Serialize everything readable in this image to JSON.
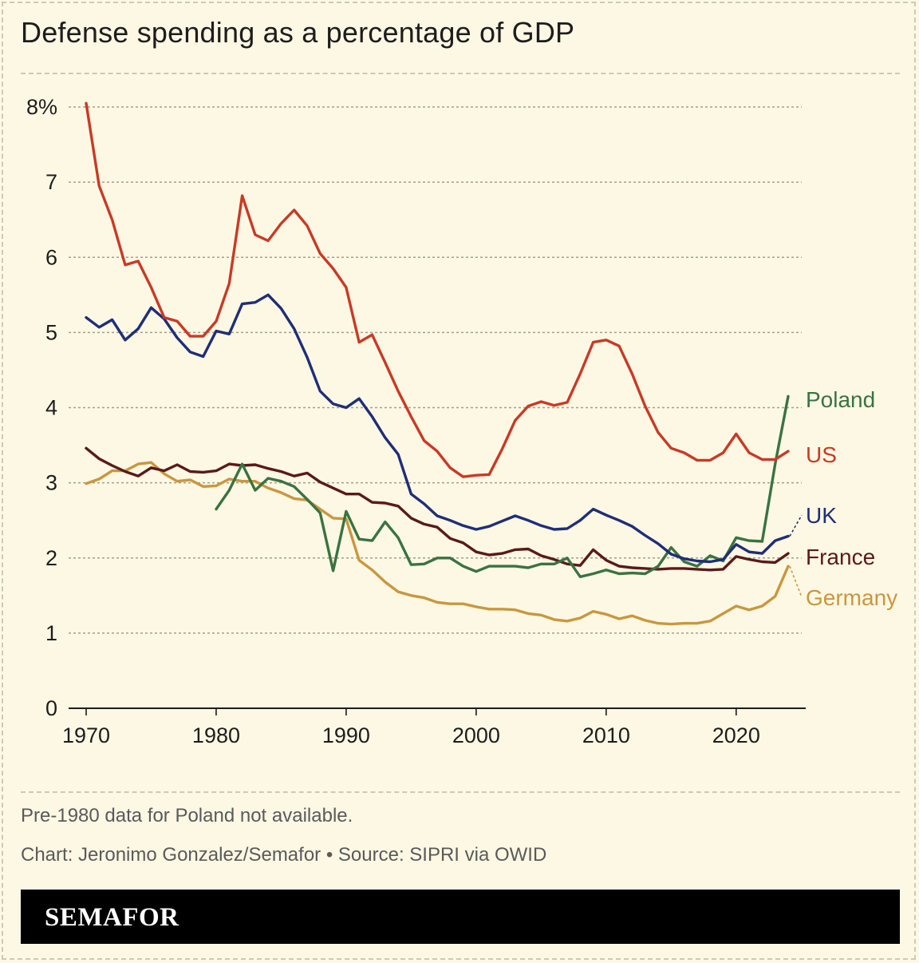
{
  "title": "Defense spending as a percentage of GDP",
  "note": "Pre-1980 data for Poland not available.",
  "credit": "Chart: Jeronimo Gonzalez/Semafor • Source: SIPRI via OWID",
  "brand": "SEMAFOR",
  "chart_data": {
    "type": "line",
    "title": "Defense spending as a percentage of GDP",
    "xlabel": "",
    "ylabel": "",
    "xlim": [
      1970,
      2024
    ],
    "ylim": [
      0,
      8
    ],
    "x_ticks": [
      {
        "value": 1970,
        "label": "1970"
      },
      {
        "value": 1980,
        "label": "1980"
      },
      {
        "value": 1990,
        "label": "1990"
      },
      {
        "value": 2000,
        "label": "2000"
      },
      {
        "value": 2010,
        "label": "2010"
      },
      {
        "value": 2020,
        "label": "2020"
      }
    ],
    "y_ticks": [
      {
        "value": 0,
        "label": "0"
      },
      {
        "value": 1,
        "label": "1"
      },
      {
        "value": 2,
        "label": "2"
      },
      {
        "value": 3,
        "label": "3"
      },
      {
        "value": 4,
        "label": "4"
      },
      {
        "value": 5,
        "label": "5"
      },
      {
        "value": 6,
        "label": "6"
      },
      {
        "value": 7,
        "label": "7"
      },
      {
        "value": 8,
        "label": "8%"
      }
    ],
    "grid": true,
    "legend": "direct labels at line ends (right)",
    "series": [
      {
        "name": "US",
        "color": "#c93a26",
        "x": [
          1970,
          1971,
          1972,
          1973,
          1974,
          1975,
          1976,
          1977,
          1978,
          1979,
          1980,
          1981,
          1982,
          1983,
          1984,
          1985,
          1986,
          1987,
          1988,
          1989,
          1990,
          1991,
          1992,
          1993,
          1994,
          1995,
          1996,
          1997,
          1998,
          1999,
          2000,
          2001,
          2002,
          2003,
          2004,
          2005,
          2006,
          2007,
          2008,
          2009,
          2010,
          2011,
          2012,
          2013,
          2014,
          2015,
          2016,
          2017,
          2018,
          2019,
          2020,
          2021,
          2022,
          2023,
          2024
        ],
        "values": [
          8.05,
          6.95,
          6.5,
          5.9,
          5.95,
          5.6,
          5.2,
          5.15,
          4.95,
          4.95,
          5.15,
          5.65,
          6.82,
          6.3,
          6.22,
          6.45,
          6.63,
          6.42,
          6.05,
          5.85,
          5.6,
          4.87,
          4.97,
          4.6,
          4.22,
          3.88,
          3.56,
          3.42,
          3.2,
          3.08,
          3.1,
          3.11,
          3.45,
          3.83,
          4.02,
          4.08,
          4.03,
          4.07,
          4.45,
          4.87,
          4.9,
          4.82,
          4.45,
          4.02,
          3.67,
          3.46,
          3.4,
          3.3,
          3.3,
          3.4,
          3.65,
          3.4,
          3.31,
          3.31,
          3.42
        ]
      },
      {
        "name": "UK",
        "color": "#1f2e78",
        "x": [
          1970,
          1971,
          1972,
          1973,
          1974,
          1975,
          1976,
          1977,
          1978,
          1979,
          1980,
          1981,
          1982,
          1983,
          1984,
          1985,
          1986,
          1987,
          1988,
          1989,
          1990,
          1991,
          1992,
          1993,
          1994,
          1995,
          1996,
          1997,
          1998,
          1999,
          2000,
          2001,
          2002,
          2003,
          2004,
          2005,
          2006,
          2007,
          2008,
          2009,
          2010,
          2011,
          2012,
          2013,
          2014,
          2015,
          2016,
          2017,
          2018,
          2019,
          2020,
          2021,
          2022,
          2023,
          2024
        ],
        "values": [
          5.2,
          5.07,
          5.17,
          4.9,
          5.05,
          5.33,
          5.18,
          4.93,
          4.74,
          4.68,
          5.02,
          4.98,
          5.38,
          5.4,
          5.5,
          5.32,
          5.05,
          4.67,
          4.22,
          4.05,
          4.0,
          4.12,
          3.88,
          3.6,
          3.38,
          2.85,
          2.72,
          2.56,
          2.5,
          2.43,
          2.38,
          2.42,
          2.49,
          2.56,
          2.5,
          2.43,
          2.38,
          2.39,
          2.5,
          2.65,
          2.57,
          2.5,
          2.42,
          2.3,
          2.19,
          2.05,
          1.99,
          1.96,
          1.95,
          1.98,
          2.18,
          2.08,
          2.06,
          2.23,
          2.29
        ]
      },
      {
        "name": "Poland",
        "color": "#3a7340",
        "x": [
          1980,
          1981,
          1982,
          1983,
          1984,
          1985,
          1986,
          1987,
          1988,
          1989,
          1990,
          1991,
          1992,
          1993,
          1994,
          1995,
          1996,
          1997,
          1998,
          1999,
          2000,
          2001,
          2002,
          2003,
          2004,
          2005,
          2006,
          2007,
          2008,
          2009,
          2010,
          2011,
          2012,
          2013,
          2014,
          2015,
          2016,
          2017,
          2018,
          2019,
          2020,
          2021,
          2022,
          2023,
          2024
        ],
        "values": [
          2.65,
          2.9,
          3.25,
          2.9,
          3.06,
          3.02,
          2.95,
          2.78,
          2.6,
          1.83,
          2.62,
          2.25,
          2.23,
          2.48,
          2.27,
          1.91,
          1.92,
          2.0,
          2.0,
          1.89,
          1.82,
          1.89,
          1.89,
          1.89,
          1.87,
          1.92,
          1.92,
          2.0,
          1.75,
          1.79,
          1.84,
          1.79,
          1.8,
          1.79,
          1.89,
          2.14,
          1.95,
          1.89,
          2.03,
          1.96,
          2.27,
          2.23,
          2.22,
          3.25,
          4.15
        ]
      },
      {
        "name": "France",
        "color": "#5a1a1a",
        "x": [
          1970,
          1971,
          1972,
          1973,
          1974,
          1975,
          1976,
          1977,
          1978,
          1979,
          1980,
          1981,
          1982,
          1983,
          1984,
          1985,
          1986,
          1987,
          1988,
          1989,
          1990,
          1991,
          1992,
          1993,
          1994,
          1995,
          1996,
          1997,
          1998,
          1999,
          2000,
          2001,
          2002,
          2003,
          2004,
          2005,
          2006,
          2007,
          2008,
          2009,
          2010,
          2011,
          2012,
          2013,
          2014,
          2015,
          2016,
          2017,
          2018,
          2019,
          2020,
          2021,
          2022,
          2023,
          2024
        ],
        "values": [
          3.46,
          3.32,
          3.23,
          3.15,
          3.09,
          3.2,
          3.16,
          3.24,
          3.15,
          3.14,
          3.16,
          3.25,
          3.23,
          3.24,
          3.19,
          3.15,
          3.09,
          3.13,
          3.01,
          2.93,
          2.85,
          2.85,
          2.74,
          2.73,
          2.69,
          2.53,
          2.45,
          2.41,
          2.26,
          2.2,
          2.08,
          2.04,
          2.06,
          2.11,
          2.12,
          2.03,
          1.98,
          1.92,
          1.9,
          2.11,
          1.97,
          1.89,
          1.87,
          1.86,
          1.85,
          1.86,
          1.86,
          1.85,
          1.84,
          1.85,
          2.02,
          1.98,
          1.95,
          1.94,
          2.06
        ]
      },
      {
        "name": "Germany",
        "color": "#c9973f",
        "x": [
          1970,
          1971,
          1972,
          1973,
          1974,
          1975,
          1976,
          1977,
          1978,
          1979,
          1980,
          1981,
          1982,
          1983,
          1984,
          1985,
          1986,
          1987,
          1988,
          1989,
          1990,
          1991,
          1992,
          1993,
          1994,
          1995,
          1996,
          1997,
          1998,
          1999,
          2000,
          2001,
          2002,
          2003,
          2004,
          2005,
          2006,
          2007,
          2008,
          2009,
          2010,
          2011,
          2012,
          2013,
          2014,
          2015,
          2016,
          2017,
          2018,
          2019,
          2020,
          2021,
          2022,
          2023,
          2024
        ],
        "values": [
          2.99,
          3.05,
          3.16,
          3.16,
          3.25,
          3.27,
          3.12,
          3.02,
          3.04,
          2.95,
          2.96,
          3.05,
          3.02,
          3.02,
          2.93,
          2.87,
          2.79,
          2.77,
          2.65,
          2.53,
          2.52,
          1.97,
          1.84,
          1.68,
          1.55,
          1.5,
          1.47,
          1.41,
          1.39,
          1.39,
          1.35,
          1.32,
          1.32,
          1.31,
          1.26,
          1.24,
          1.18,
          1.16,
          1.2,
          1.29,
          1.25,
          1.19,
          1.23,
          1.17,
          1.13,
          1.12,
          1.13,
          1.13,
          1.16,
          1.26,
          1.36,
          1.31,
          1.36,
          1.49,
          1.89
        ]
      }
    ]
  }
}
